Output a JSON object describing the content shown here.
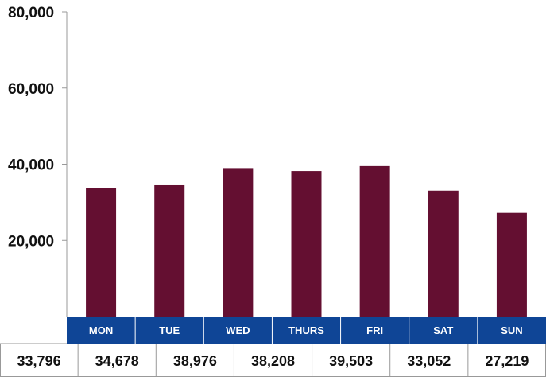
{
  "chart_data": {
    "type": "bar",
    "categories": [
      "MON",
      "TUE",
      "WED",
      "THURS",
      "FRI",
      "SAT",
      "SUN"
    ],
    "values": [
      33796,
      34678,
      38976,
      38208,
      39503,
      33052,
      27219
    ],
    "value_labels": [
      "33,796",
      "34,678",
      "38,976",
      "38,208",
      "39,503",
      "33,052",
      "27,219"
    ],
    "ylim": [
      0,
      80000
    ],
    "yticks": [
      20000,
      40000,
      60000,
      80000
    ],
    "ytick_labels": [
      "20,000",
      "40,000",
      "60,000",
      "80,000"
    ],
    "grid": false,
    "legend": "none"
  },
  "colors": {
    "bar": "#640f31",
    "category_band": "#0f4596",
    "axis": "#999999",
    "text": "#111111"
  }
}
